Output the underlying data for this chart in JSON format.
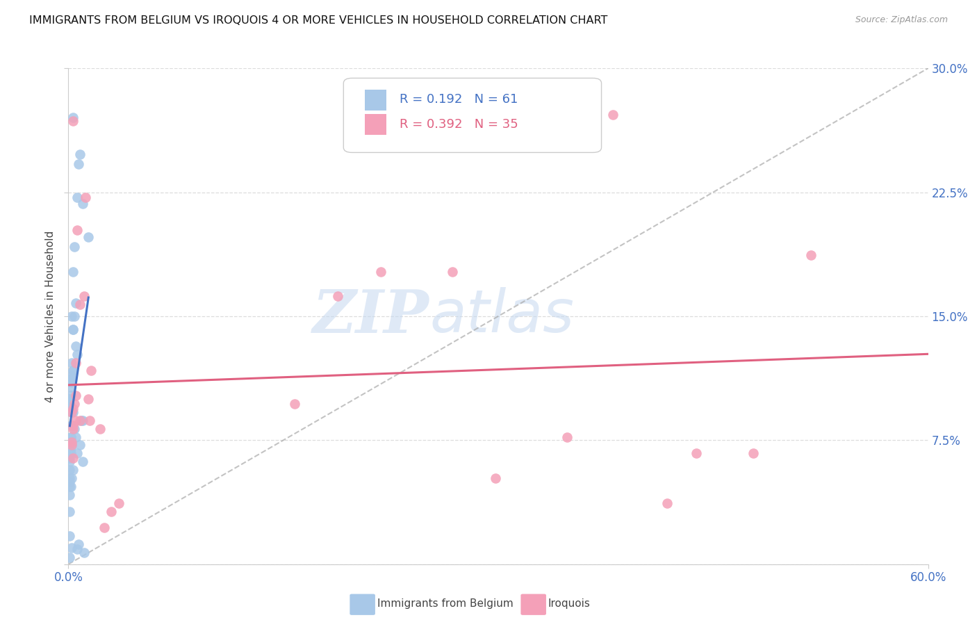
{
  "title": "IMMIGRANTS FROM BELGIUM VS IROQUOIS 4 OR MORE VEHICLES IN HOUSEHOLD CORRELATION CHART",
  "source": "Source: ZipAtlas.com",
  "ylabel": "4 or more Vehicles in Household",
  "xlim": [
    0.0,
    0.6
  ],
  "ylim": [
    0.0,
    0.3
  ],
  "legend_r1": "R = 0.192",
  "legend_n1": "N = 61",
  "legend_r2": "R = 0.392",
  "legend_n2": "N = 35",
  "label1": "Immigrants from Belgium",
  "label2": "Iroquois",
  "color1": "#a8c8e8",
  "color2": "#f4a0b8",
  "line_color1": "#4472c4",
  "line_color2": "#e06080",
  "watermark_zip": "ZIP",
  "watermark_atlas": "atlas",
  "blue_scatter_x": [
    0.003,
    0.008,
    0.007,
    0.006,
    0.01,
    0.014,
    0.004,
    0.003,
    0.005,
    0.002,
    0.004,
    0.003,
    0.003,
    0.005,
    0.006,
    0.002,
    0.003,
    0.003,
    0.002,
    0.0015,
    0.002,
    0.002,
    0.0015,
    0.0015,
    0.001,
    0.001,
    0.001,
    0.001,
    0.002,
    0.003,
    0.009,
    0.002,
    0.004,
    0.0015,
    0.0015,
    0.002,
    0.002,
    0.0015,
    0.0015,
    0.001,
    0.001,
    0.001,
    0.001,
    0.001,
    0.001,
    0.001,
    0.01,
    0.005,
    0.008,
    0.006,
    0.01,
    0.003,
    0.002,
    0.0015,
    0.001,
    0.001,
    0.007,
    0.002,
    0.006,
    0.011,
    0.001
  ],
  "blue_scatter_y": [
    0.27,
    0.248,
    0.242,
    0.222,
    0.218,
    0.198,
    0.192,
    0.177,
    0.158,
    0.15,
    0.15,
    0.142,
    0.142,
    0.132,
    0.127,
    0.122,
    0.117,
    0.117,
    0.114,
    0.112,
    0.112,
    0.11,
    0.107,
    0.102,
    0.1,
    0.1,
    0.097,
    0.097,
    0.092,
    0.092,
    0.087,
    0.084,
    0.082,
    0.077,
    0.077,
    0.074,
    0.072,
    0.07,
    0.067,
    0.064,
    0.062,
    0.057,
    0.052,
    0.05,
    0.047,
    0.042,
    0.087,
    0.077,
    0.072,
    0.067,
    0.062,
    0.057,
    0.052,
    0.047,
    0.032,
    0.017,
    0.012,
    0.01,
    0.009,
    0.007,
    0.004
  ],
  "pink_scatter_x": [
    0.003,
    0.012,
    0.006,
    0.011,
    0.008,
    0.005,
    0.016,
    0.005,
    0.014,
    0.004,
    0.003,
    0.002,
    0.005,
    0.003,
    0.003,
    0.008,
    0.002,
    0.002,
    0.003,
    0.015,
    0.022,
    0.38,
    0.268,
    0.188,
    0.218,
    0.158,
    0.478,
    0.518,
    0.348,
    0.438,
    0.298,
    0.418,
    0.035,
    0.03,
    0.025
  ],
  "pink_scatter_y": [
    0.268,
    0.222,
    0.202,
    0.162,
    0.157,
    0.122,
    0.117,
    0.102,
    0.1,
    0.097,
    0.094,
    0.092,
    0.087,
    0.084,
    0.082,
    0.087,
    0.074,
    0.072,
    0.064,
    0.087,
    0.082,
    0.272,
    0.177,
    0.162,
    0.177,
    0.097,
    0.067,
    0.187,
    0.077,
    0.067,
    0.052,
    0.037,
    0.037,
    0.032,
    0.022
  ]
}
